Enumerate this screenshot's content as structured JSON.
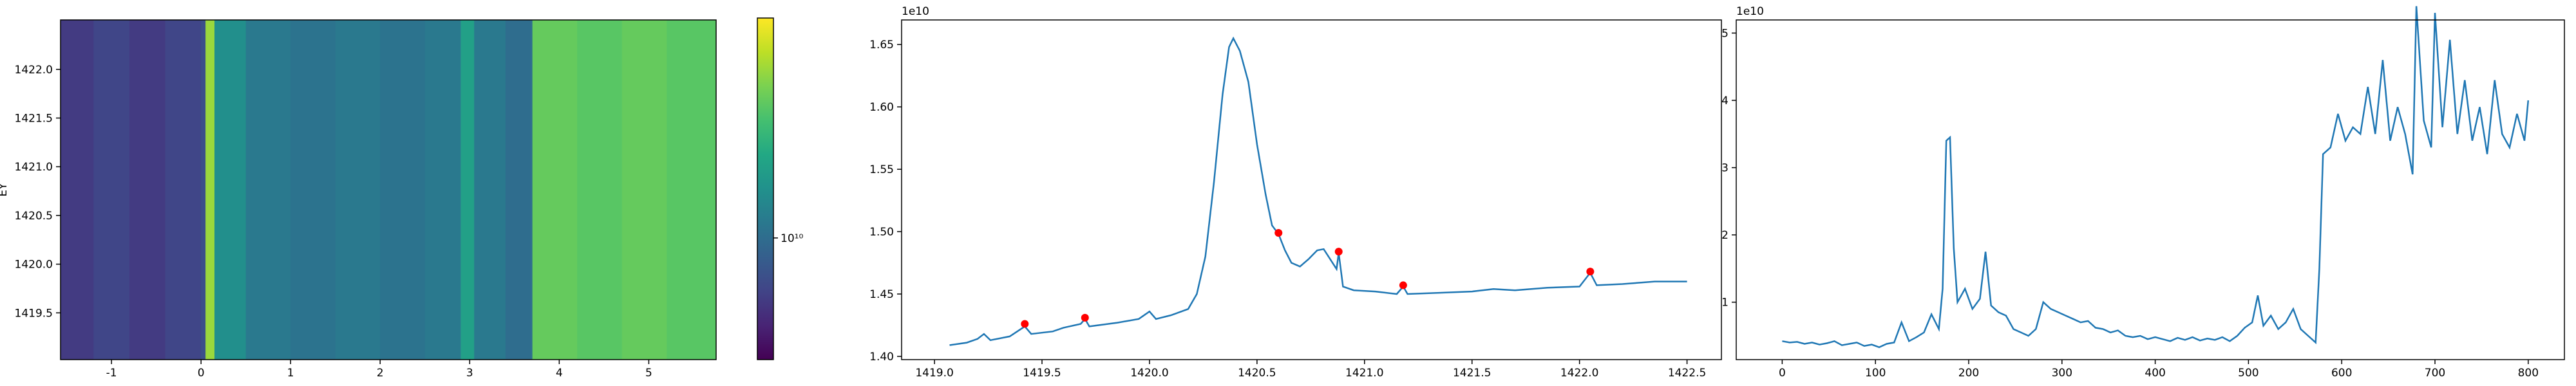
{
  "chart_data": [
    {
      "type": "heatmap",
      "ylabel": "EY",
      "colormap": "viridis",
      "color_scale": "log",
      "x_edges": [
        -1.569,
        -1.2,
        -0.8,
        -0.4,
        0.0,
        0.05,
        0.15,
        0.5,
        1.0,
        1.5,
        2.0,
        2.5,
        2.9,
        3.05,
        3.4,
        3.7,
        4.2,
        4.7,
        5.2,
        5.752
      ],
      "values": [
        7000000000.0,
        7500000000.0,
        7000000000.0,
        7500000000.0,
        8000000000.0,
        26000000000.0,
        13000000000.0,
        11000000000.0,
        10500000000.0,
        11000000000.0,
        10500000000.0,
        11000000000.0,
        15000000000.0,
        11000000000.0,
        10000000000.0,
        22000000000.0,
        21000000000.0,
        22000000000.0,
        21000000000.0
      ],
      "xlim": [
        -1.569,
        5.752
      ],
      "ylim": [
        1419.02,
        1422.507
      ],
      "xticks": [
        -1,
        0,
        1,
        2,
        3,
        4,
        5
      ],
      "yticks": [
        1419.5,
        {
          "value": 1420.0,
          "label": "1420.0"
        },
        1420.5,
        {
          "value": 1421.0,
          "label": "1421.0"
        },
        1421.5,
        {
          "value": 1422.0,
          "label": "1422.0"
        }
      ],
      "clim": [
        5000000000.0,
        35000000000.0
      ],
      "cticks": [
        {
          "value": 10000000000.0,
          "label": "10¹⁰"
        }
      ]
    },
    {
      "type": "line",
      "color": "#1f77b4",
      "offset_label": "1e10",
      "x": [
        1419.07,
        1419.15,
        1419.2,
        1419.23,
        1419.26,
        1419.35,
        1419.42,
        1419.45,
        1419.55,
        1419.6,
        1419.68,
        1419.7,
        1419.72,
        1419.85,
        1419.95,
        1420.0,
        1420.03,
        1420.1,
        1420.18,
        1420.22,
        1420.26,
        1420.3,
        1420.34,
        1420.37,
        1420.39,
        1420.42,
        1420.46,
        1420.5,
        1420.54,
        1420.57,
        1420.6,
        1420.63,
        1420.66,
        1420.7,
        1420.74,
        1420.78,
        1420.81,
        1420.84,
        1420.87,
        1420.88,
        1420.9,
        1420.95,
        1421.05,
        1421.15,
        1421.18,
        1421.2,
        1421.35,
        1421.5,
        1421.6,
        1421.7,
        1421.85,
        1422.0,
        1422.05,
        1422.08,
        1422.2,
        1422.35,
        1422.5
      ],
      "values": [
        1.409,
        1.411,
        1.414,
        1.418,
        1.413,
        1.416,
        1.424,
        1.418,
        1.42,
        1.423,
        1.426,
        1.43,
        1.424,
        1.427,
        1.43,
        1.436,
        1.43,
        1.433,
        1.438,
        1.45,
        1.48,
        1.54,
        1.61,
        1.648,
        1.655,
        1.645,
        1.62,
        1.57,
        1.53,
        1.505,
        1.498,
        1.485,
        1.475,
        1.472,
        1.478,
        1.485,
        1.486,
        1.478,
        1.47,
        1.483,
        1.456,
        1.453,
        1.452,
        1.45,
        1.456,
        1.45,
        1.451,
        1.452,
        1.454,
        1.453,
        1.455,
        1.456,
        1.467,
        1.457,
        1.458,
        1.46,
        1.46
      ],
      "markers": {
        "color": "red",
        "x": [
          1419.42,
          1419.7,
          1420.6,
          1420.88,
          1421.18,
          1422.05
        ],
        "values": [
          1.426,
          1.431,
          1.499,
          1.484,
          1.457,
          1.468
        ]
      },
      "xlim": [
        1418.847,
        1422.66
      ],
      "ylim": [
        1.3974,
        1.6697
      ],
      "xticks": [
        {
          "value": 1419.0,
          "label": "1419.0"
        },
        1419.5,
        {
          "value": 1420.0,
          "label": "1420.0"
        },
        1420.5,
        {
          "value": 1421.0,
          "label": "1421.0"
        },
        1421.5,
        {
          "value": 1422.0,
          "label": "1422.0"
        },
        1422.5
      ],
      "yticks": [
        {
          "value": 1.4,
          "label": "1.40"
        },
        1.45,
        {
          "value": 1.5,
          "label": "1.50"
        },
        1.55,
        {
          "value": 1.6,
          "label": "1.60"
        },
        1.65
      ]
    },
    {
      "type": "line",
      "color": "#1f77b4",
      "offset_label": "1e10",
      "x": [
        0,
        8,
        16,
        24,
        32,
        40,
        48,
        56,
        64,
        72,
        80,
        88,
        96,
        104,
        112,
        120,
        128,
        136,
        144,
        152,
        160,
        168,
        172,
        176,
        180,
        184,
        188,
        196,
        204,
        212,
        218,
        224,
        232,
        240,
        248,
        256,
        264,
        272,
        280,
        288,
        296,
        304,
        312,
        320,
        328,
        336,
        344,
        352,
        360,
        368,
        376,
        384,
        392,
        400,
        408,
        416,
        424,
        432,
        440,
        448,
        456,
        464,
        472,
        480,
        488,
        496,
        504,
        510,
        516,
        524,
        532,
        540,
        548,
        556,
        564,
        572,
        576,
        580,
        588,
        596,
        604,
        612,
        620,
        628,
        636,
        644,
        652,
        660,
        668,
        676,
        680,
        688,
        696,
        700,
        708,
        716,
        724,
        732,
        740,
        748,
        756,
        764,
        772,
        780,
        788,
        796,
        800
      ],
      "values": [
        0.42,
        0.4,
        0.41,
        0.38,
        0.4,
        0.37,
        0.39,
        0.42,
        0.36,
        0.38,
        0.4,
        0.35,
        0.37,
        0.33,
        0.38,
        0.4,
        0.7,
        0.42,
        0.48,
        0.55,
        0.82,
        0.6,
        1.2,
        3.4,
        3.45,
        1.8,
        1.0,
        1.2,
        0.9,
        1.05,
        1.75,
        0.95,
        0.85,
        0.8,
        0.6,
        0.55,
        0.5,
        0.6,
        1.0,
        0.9,
        0.85,
        0.8,
        0.75,
        0.7,
        0.72,
        0.62,
        0.6,
        0.55,
        0.58,
        0.5,
        0.48,
        0.5,
        0.45,
        0.48,
        0.45,
        0.42,
        0.47,
        0.44,
        0.48,
        0.43,
        0.46,
        0.44,
        0.48,
        0.42,
        0.5,
        0.62,
        0.7,
        1.1,
        0.65,
        0.8,
        0.6,
        0.7,
        0.9,
        0.6,
        0.5,
        0.4,
        1.5,
        3.2,
        3.3,
        3.8,
        3.4,
        3.6,
        3.5,
        4.2,
        3.5,
        4.6,
        3.4,
        3.9,
        3.5,
        2.9,
        5.4,
        3.7,
        3.3,
        5.3,
        3.6,
        4.9,
        3.5,
        4.3,
        3.4,
        3.9,
        3.2,
        4.3,
        3.5,
        3.3,
        3.8,
        3.4,
        4.0
      ],
      "xlim": [
        -49.3,
        838.8
      ],
      "ylim": [
        0.146,
        5.195
      ],
      "xticks": [
        0,
        100,
        200,
        300,
        400,
        500,
        600,
        700,
        800
      ],
      "yticks": [
        1,
        2,
        3,
        4,
        5
      ]
    }
  ]
}
